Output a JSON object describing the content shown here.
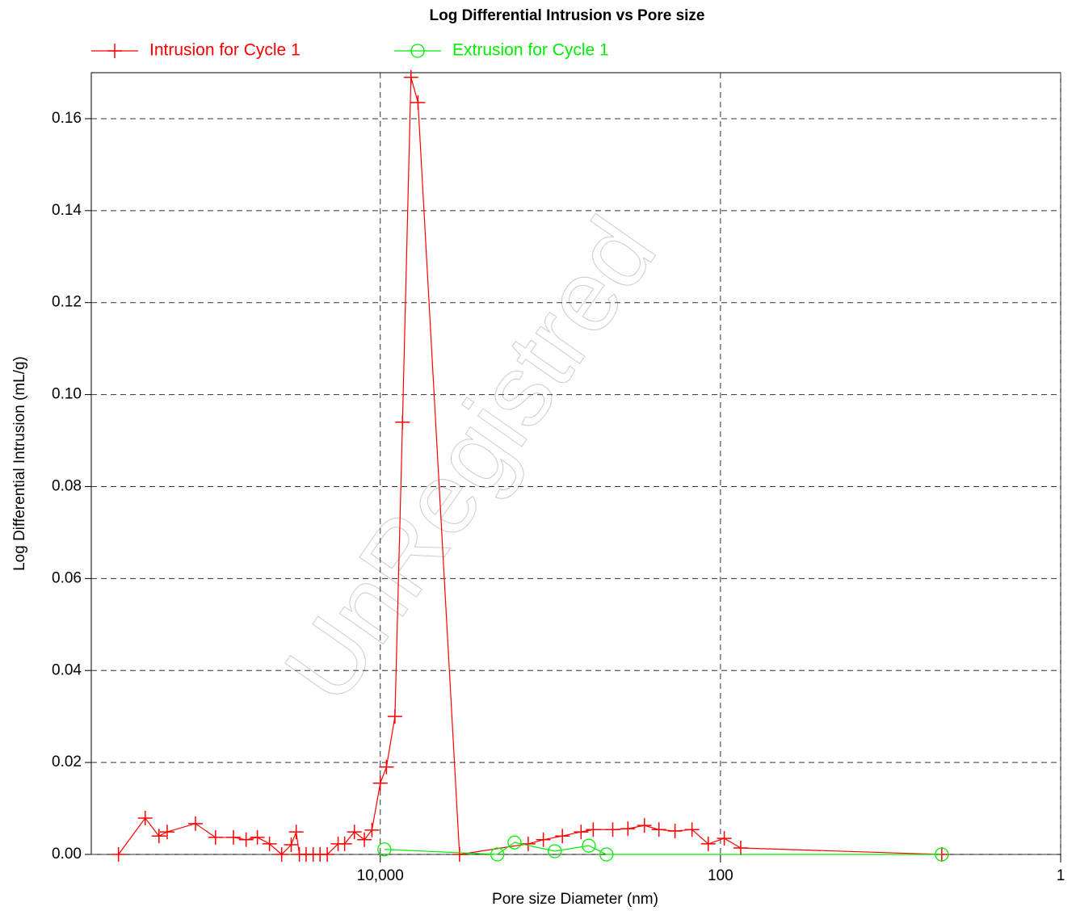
{
  "chart_data": {
    "type": "line",
    "title": "Log Differential Intrusion vs Pore size",
    "x_label": "Pore size Diameter (nm)",
    "y_label": "Log Differential Intrusion (mL/g)",
    "watermark": "UnRegistred",
    "x_scale": "log",
    "x_reversed": true,
    "grid": true,
    "legend": "top-left",
    "xlim": [
      500000,
      1
    ],
    "xticks": [
      {
        "value": 10000,
        "label": "10,000"
      },
      100,
      1
    ],
    "ylim": [
      0,
      0.17
    ],
    "yticks": [
      {
        "value": 0,
        "label": "0.00"
      },
      0.02,
      0.04,
      0.06,
      0.08,
      {
        "value": 0.1,
        "label": "0.10"
      },
      0.12,
      0.14,
      0.16
    ],
    "series": [
      {
        "name": "Intrusion for Cycle 1",
        "color": "#ff0000",
        "marker": "plus",
        "x": [
          346000,
          241000,
          200000,
          179000,
          122000,
          93000,
          73000,
          61500,
          52800,
          44800,
          38000,
          33400,
          31200,
          29900,
          27300,
          24800,
          22600,
          20500,
          17700,
          16200,
          14200,
          12400,
          11200,
          10000,
          9200,
          8200,
          7400,
          6600,
          6000,
          3420,
          1350,
          1100,
          850,
          660,
          560,
          430,
          350,
          280,
          230,
          185,
          147,
          118,
          95,
          76,
          5
        ],
        "values": [
          0,
          0.0079,
          0.004,
          0.0049,
          0.0067,
          0.0037,
          0.0037,
          0.0032,
          0.0037,
          0.0023,
          0,
          0.0021,
          0.0049,
          0,
          0,
          0,
          0,
          0,
          0.0023,
          0.0023,
          0.0049,
          0.0032,
          0.0053,
          0.0155,
          0.019,
          0.03,
          0.094,
          0.169,
          0.1635,
          0,
          0.0023,
          0.0032,
          0.004,
          0.0049,
          0.0054,
          0.0054,
          0.0056,
          0.0063,
          0.0054,
          0.0051,
          0.0054,
          0.0023,
          0.0035,
          0.0014,
          0
        ]
      },
      {
        "name": "Extrusion for Cycle 1",
        "color": "#00ee00",
        "marker": "circle",
        "x": [
          9460,
          2050,
          1625,
          942,
          594,
          468,
          5
        ],
        "values": [
          0.0011,
          0,
          0.0026,
          0.0007,
          0.0019,
          0,
          0
        ]
      }
    ]
  }
}
